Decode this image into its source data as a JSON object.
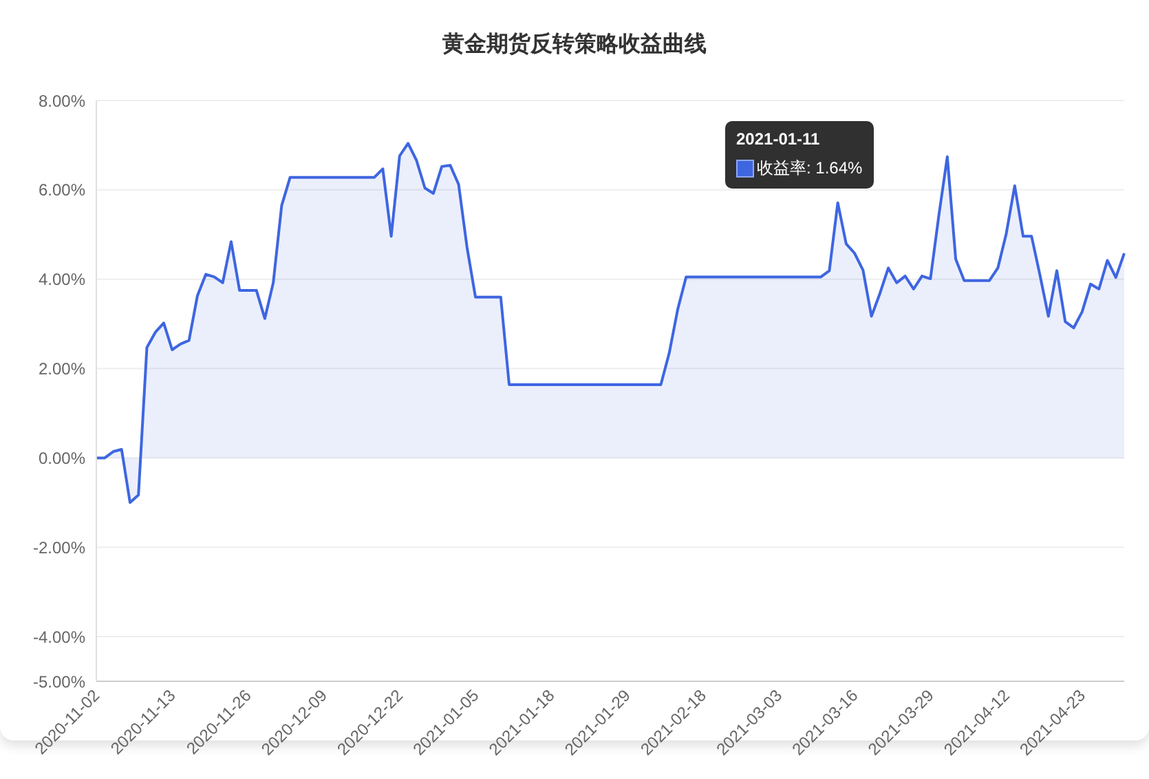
{
  "chart_data": {
    "type": "area",
    "title": "黄金期货反转策略收益曲线",
    "categories": [
      "2020-11-02",
      null,
      null,
      null,
      null,
      null,
      null,
      null,
      null,
      "2020-11-13",
      null,
      null,
      null,
      null,
      null,
      null,
      null,
      null,
      "2020-11-26",
      null,
      null,
      null,
      null,
      null,
      null,
      null,
      null,
      "2020-12-09",
      null,
      null,
      null,
      null,
      null,
      null,
      null,
      null,
      "2020-12-22",
      null,
      null,
      null,
      null,
      null,
      null,
      null,
      null,
      "2021-01-05",
      null,
      null,
      null,
      null,
      null,
      null,
      null,
      null,
      "2021-01-18",
      null,
      null,
      null,
      null,
      null,
      null,
      null,
      null,
      "2021-01-29",
      null,
      null,
      null,
      null,
      null,
      null,
      null,
      null,
      "2021-02-18",
      null,
      null,
      null,
      null,
      null,
      null,
      null,
      null,
      "2021-03-03",
      null,
      null,
      null,
      null,
      null,
      null,
      null,
      null,
      "2021-03-16",
      null,
      null,
      null,
      null,
      null,
      null,
      null,
      null,
      "2021-03-29",
      null,
      null,
      null,
      null,
      null,
      null,
      null,
      null,
      "2021-04-12",
      null,
      null,
      null,
      null,
      null,
      null,
      null,
      null,
      "2021-04-23",
      null,
      null,
      null,
      null,
      null
    ],
    "series": [
      {
        "color": "#3e66e0",
        "values": [
          0,
          0,
          0.14,
          0.19,
          -1.0,
          -0.83,
          2.47,
          2.81,
          3.02,
          2.42,
          2.55,
          2.63,
          3.63,
          4.11,
          4.05,
          3.92,
          4.84,
          3.75,
          3.75,
          3.75,
          3.12,
          3.92,
          5.65,
          6.28,
          6.28,
          6.28,
          6.28,
          6.28,
          6.28,
          6.28,
          6.28,
          6.28,
          6.28,
          6.28,
          6.47,
          4.96,
          6.76,
          7.04,
          6.66,
          6.04,
          5.92,
          6.52,
          6.55,
          6.12,
          4.71,
          3.6,
          3.6,
          3.6,
          3.6,
          1.64,
          1.64,
          1.64,
          1.64,
          1.64,
          1.64,
          1.64,
          1.64,
          1.64,
          1.64,
          1.64,
          1.64,
          1.64,
          1.64,
          1.64,
          1.64,
          1.64,
          1.64,
          1.64,
          2.35,
          3.32,
          4.05,
          4.05,
          4.05,
          4.05,
          4.05,
          4.05,
          4.05,
          4.05,
          4.05,
          4.05,
          4.05,
          4.05,
          4.05,
          4.05,
          4.05,
          4.05,
          4.05,
          4.19,
          5.71,
          4.79,
          4.58,
          4.2,
          3.17,
          3.68,
          4.25,
          3.92,
          4.07,
          3.78,
          4.07,
          4.01,
          5.43,
          6.74,
          4.45,
          3.97,
          3.97,
          3.97,
          3.97,
          4.25,
          5.02,
          6.09,
          4.96,
          4.96,
          4.09,
          3.17,
          4.19,
          3.05,
          2.91,
          3.27,
          3.89,
          3.78,
          4.42,
          4.04,
          4.58
        ]
      }
    ],
    "ylim": [
      -5,
      8
    ],
    "yticks": [
      {
        "value": -5,
        "label": "-5.00%"
      },
      {
        "value": -4,
        "label": "-4.00%"
      },
      {
        "value": -2,
        "label": "-2.00%"
      },
      {
        "value": 0,
        "label": "0.00%"
      },
      {
        "value": 2,
        "label": "2.00%"
      },
      {
        "value": 4,
        "label": "4.00%"
      },
      {
        "value": 6,
        "label": "6.00%"
      },
      {
        "value": 8,
        "label": "8.00%"
      }
    ],
    "grid": "y",
    "annotations": [
      "2021-01-11",
      "收益率: 1.64%"
    ]
  }
}
